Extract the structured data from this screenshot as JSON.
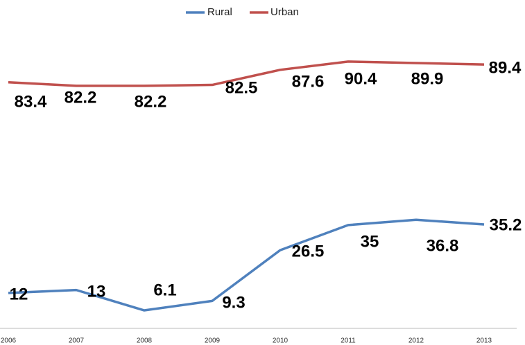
{
  "chart_data": {
    "type": "line",
    "categories": [
      "2006",
      "2007",
      "2008",
      "2009",
      "2010",
      "2011",
      "2012",
      "2013"
    ],
    "series": [
      {
        "name": "Rural",
        "color": "#4f81bd",
        "values": [
          12,
          13,
          6.1,
          9.3,
          26.5,
          35,
          36.8,
          35.2
        ]
      },
      {
        "name": "Urban",
        "color": "#c0504d",
        "values": [
          83.4,
          82.2,
          82.2,
          82.5,
          87.6,
          90.4,
          89.9,
          89.4
        ]
      }
    ],
    "ylim": [
      0,
      100
    ],
    "legend": "top"
  }
}
